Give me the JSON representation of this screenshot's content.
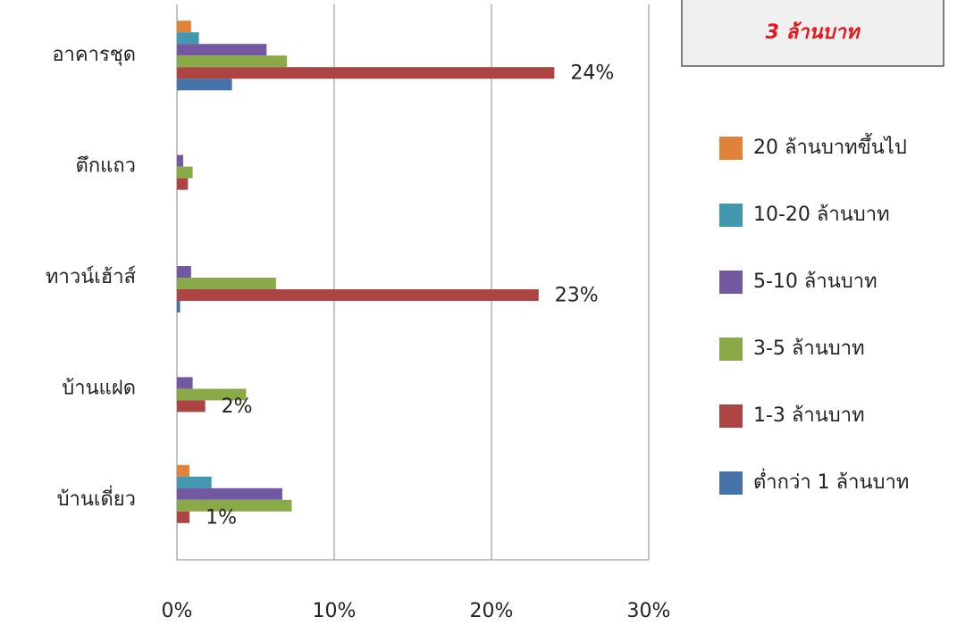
{
  "chart_data": {
    "type": "hbar",
    "annotation": "3 ล้านบาท",
    "categories": [
      "อาคารชุด",
      "ตึกแถว",
      "ทาวน์เฮ้าส์",
      "บ้านแฝด",
      "บ้านเดี่ยว"
    ],
    "series": [
      {
        "name": "20 ล้านบาทขึ้นไป",
        "color": "#e0823a",
        "values": [
          0.9,
          0,
          0,
          0,
          0.8
        ]
      },
      {
        "name": "10-20 ล้านบาท",
        "color": "#4198af",
        "values": [
          1.4,
          0,
          0,
          0,
          2.2
        ]
      },
      {
        "name": "5-10 ล้านบาท",
        "color": "#7158a0",
        "values": [
          5.7,
          0.4,
          0.9,
          1.0,
          6.7
        ]
      },
      {
        "name": "3-5 ล้านบาท",
        "color": "#8aaa4a",
        "values": [
          7.0,
          1.0,
          6.3,
          4.4,
          7.3
        ]
      },
      {
        "name": "1-3 ล้านบาท",
        "color": "#ab4443",
        "values": [
          24,
          0.7,
          23,
          1.8,
          0.8
        ],
        "value_labels": [
          "24%",
          null,
          "23%",
          "2%",
          "1%"
        ]
      },
      {
        "name": "ต่ำกว่า 1 ล้านบาท",
        "color": "#4572a7",
        "values": [
          3.5,
          0,
          0.2,
          0,
          0
        ]
      }
    ],
    "xlim": [
      0,
      30
    ],
    "xticks": [
      {
        "value": 0,
        "label": "0%"
      },
      {
        "value": 10,
        "label": "10%"
      },
      {
        "value": 20,
        "label": "20%"
      },
      {
        "value": 30,
        "label": "30%"
      }
    ],
    "grid": true
  }
}
